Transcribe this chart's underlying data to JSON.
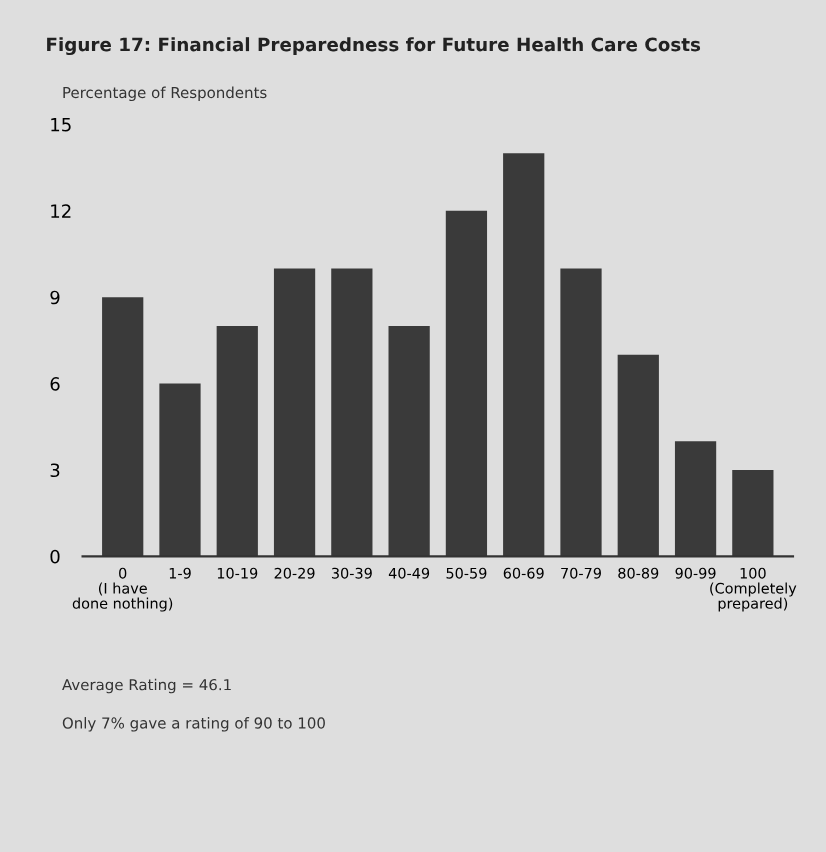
{
  "chart_data": {
    "type": "bar",
    "title": "Figure 17: Financial Preparedness for Future Health Care Costs",
    "ylabel": "Percentage of Respondents",
    "categories": [
      "0\n(I have\ndone nothing)",
      "1-9",
      "10-19",
      "20-29",
      "30-39",
      "40-49",
      "50-59",
      "60-69",
      "70-79",
      "80-89",
      "90-99",
      "100\n(Completely\nprepared)"
    ],
    "values": [
      9,
      6,
      8,
      10,
      10,
      8,
      12,
      14,
      10,
      7,
      4,
      3
    ],
    "color": "#3a3a3a",
    "ylim": [
      0,
      15
    ],
    "yticks": [
      0,
      3,
      6,
      9,
      12,
      15
    ],
    "annotations": [
      "Average Rating = 46.1",
      "Only 7% gave a rating of 90 to 100"
    ]
  }
}
